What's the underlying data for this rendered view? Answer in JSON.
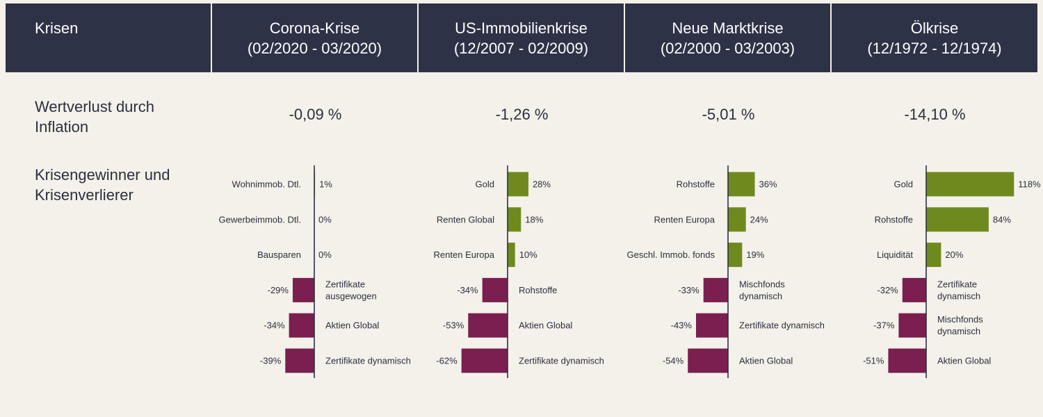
{
  "header": {
    "row_label": "Krisen",
    "crises": [
      {
        "name": "Corona-Krise",
        "period": "(02/2020 - 03/2020)"
      },
      {
        "name": "US-Immobilienkrise",
        "period": "(12/2007 - 02/2009)"
      },
      {
        "name": "Neue Marktkrise",
        "period": "(02/2000 - 03/2003)"
      },
      {
        "name": "Ölkrise",
        "period": "(12/1972 - 12/1974)"
      }
    ]
  },
  "rows": {
    "inflation_label_line1": "Wertverlust durch",
    "inflation_label_line2": "Inflation",
    "winners_label_line1": "Krisengewinner und",
    "winners_label_line2": "Krisenverlierer"
  },
  "inflation": [
    "-0,09 %",
    "-1,26 %",
    "-5,01 %",
    "-14,10 %"
  ],
  "colors": {
    "positive": "#6e8a1f",
    "negative": "#7a1f4f",
    "axis": "#2b2f3e",
    "header_bg": "#2e3247"
  },
  "chart_data": [
    {
      "type": "bar",
      "title": "Corona-Krise",
      "categories": [
        "Wohnimmob. Dtl.",
        "Gewerbeimmob. Dtl.",
        "Bausparen",
        "Zertifikate ausgewogen",
        "Aktien Global",
        "Zertifikate dynamisch"
      ],
      "category_lines": [
        [
          "Wohnimmob. Dtl."
        ],
        [
          "Gewerbeimmob. Dtl."
        ],
        [
          "Bausparen"
        ],
        [
          "Zertifikate",
          "ausgewogen"
        ],
        [
          "Aktien Global"
        ],
        [
          "Zertifikate dynamisch"
        ]
      ],
      "values": [
        1,
        0,
        0,
        -29,
        -34,
        -39
      ],
      "value_labels": [
        "1%",
        "0%",
        "0%",
        "-29%",
        "-34%",
        "-39%"
      ]
    },
    {
      "type": "bar",
      "title": "US-Immobilienkrise",
      "categories": [
        "Gold",
        "Renten Global",
        "Renten Europa",
        "Rohstoffe",
        "Aktien Global",
        "Zertifikate dynamisch"
      ],
      "category_lines": [
        [
          "Gold"
        ],
        [
          "Renten Global"
        ],
        [
          "Renten Europa"
        ],
        [
          "Rohstoffe"
        ],
        [
          "Aktien Global"
        ],
        [
          "Zertifikate dynamisch"
        ]
      ],
      "values": [
        28,
        18,
        10,
        -34,
        -53,
        -62
      ],
      "value_labels": [
        "28%",
        "18%",
        "10%",
        "-34%",
        "-53%",
        "-62%"
      ]
    },
    {
      "type": "bar",
      "title": "Neue Marktkrise",
      "categories": [
        "Rohstoffe",
        "Renten Europa",
        "Geschl. Immob. fonds",
        "Mischfonds dynamisch",
        "Zertifikate dynamisch",
        "Aktien Global"
      ],
      "category_lines": [
        [
          "Rohstoffe"
        ],
        [
          "Renten Europa"
        ],
        [
          "Geschl. Immob. fonds"
        ],
        [
          "Mischfonds",
          "dynamisch"
        ],
        [
          "Zertifikate dynamisch"
        ],
        [
          "Aktien Global"
        ]
      ],
      "values": [
        36,
        24,
        19,
        -33,
        -43,
        -54
      ],
      "value_labels": [
        "36%",
        "24%",
        "19%",
        "-33%",
        "-43%",
        "-54%"
      ]
    },
    {
      "type": "bar",
      "title": "Ölkrise",
      "categories": [
        "Gold",
        "Rohstoffe",
        "Liquidität",
        "Zertifikate dynamisch",
        "Mischfonds dynamisch",
        "Aktien Global"
      ],
      "category_lines": [
        [
          "Gold"
        ],
        [
          "Rohstoffe"
        ],
        [
          "Liquidität"
        ],
        [
          "Zertifikate",
          "dynamisch"
        ],
        [
          "Mischfonds",
          "dynamisch"
        ],
        [
          "Aktien Global"
        ]
      ],
      "values": [
        118,
        84,
        20,
        -32,
        -37,
        -51
      ],
      "value_labels": [
        "118%",
        "84%",
        "20%",
        "-32%",
        "-37%",
        "-51%"
      ]
    }
  ]
}
